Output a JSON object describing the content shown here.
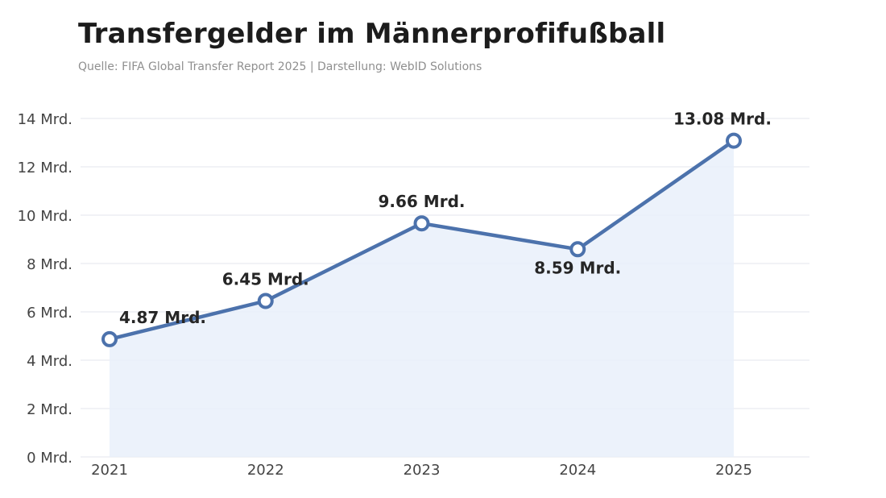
{
  "header": {
    "title": "Transfergelder im Männerprofifußball",
    "subtitle": "Quelle: FIFA Global Transfer Report 2025 | Darstellung: WebID Solutions"
  },
  "colors": {
    "line": "#4c72ac",
    "area": "#e9f0fa",
    "grid": "#e3e6ec",
    "marker_fill": "#ffffff"
  },
  "chart_data": {
    "type": "area",
    "title": "Transfergelder im Männerprofifußball",
    "xlabel": "",
    "ylabel": "",
    "categories": [
      "2021",
      "2022",
      "2023",
      "2024",
      "2025"
    ],
    "series": [
      {
        "values": [
          4.87,
          6.45,
          9.66,
          8.59,
          13.08
        ],
        "data_labels": [
          "4.87 Mrd.",
          "6.45 Mrd.",
          "9.66 Mrd.",
          "8.59 Mrd.",
          "13.08 Mrd."
        ]
      }
    ],
    "ylim": [
      0,
      14
    ],
    "y_ticks": [
      0,
      2,
      4,
      6,
      8,
      10,
      12,
      14
    ],
    "y_tick_labels": [
      "0 Mrd.",
      "2 Mrd.",
      "4 Mrd.",
      "6 Mrd.",
      "8 Mrd.",
      "10 Mrd.",
      "12 Mrd.",
      "14 Mrd."
    ],
    "grid": true,
    "legend": "none"
  }
}
